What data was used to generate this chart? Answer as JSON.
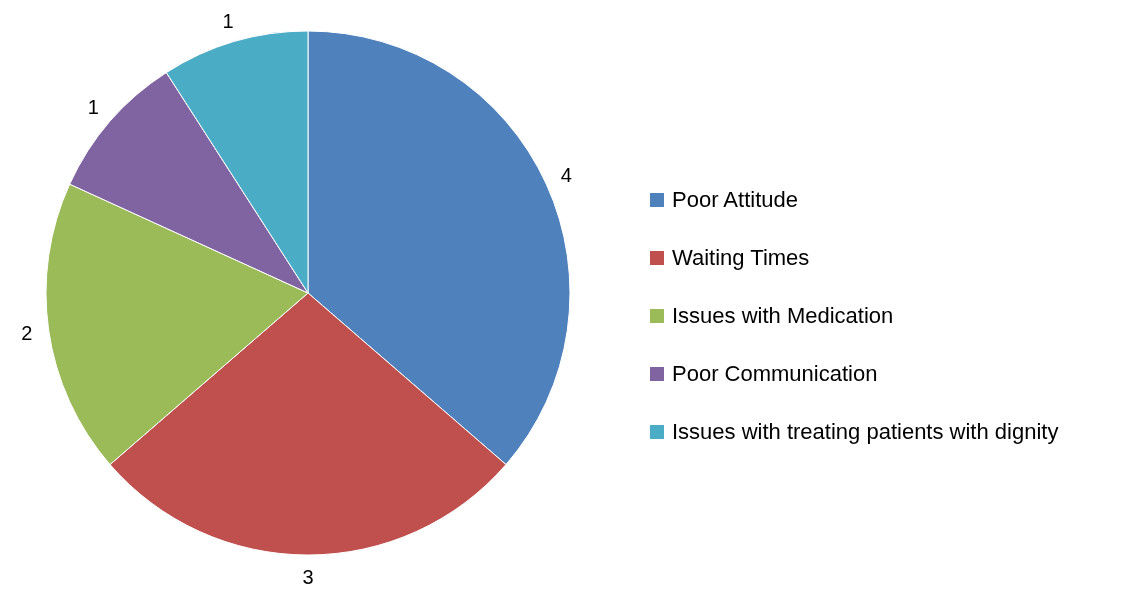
{
  "chart_data": {
    "type": "pie",
    "categories": [
      "Poor Attitude",
      "Waiting Times",
      "Issues with Medication",
      "Poor Communication",
      "Issues with treating patients with dignity"
    ],
    "values": [
      4,
      3,
      2,
      1,
      1
    ],
    "colors": [
      "#4f81bd",
      "#c0504d",
      "#9bbb59",
      "#8064a2",
      "#4bacc6"
    ],
    "data_labels": true,
    "legend": "right"
  }
}
